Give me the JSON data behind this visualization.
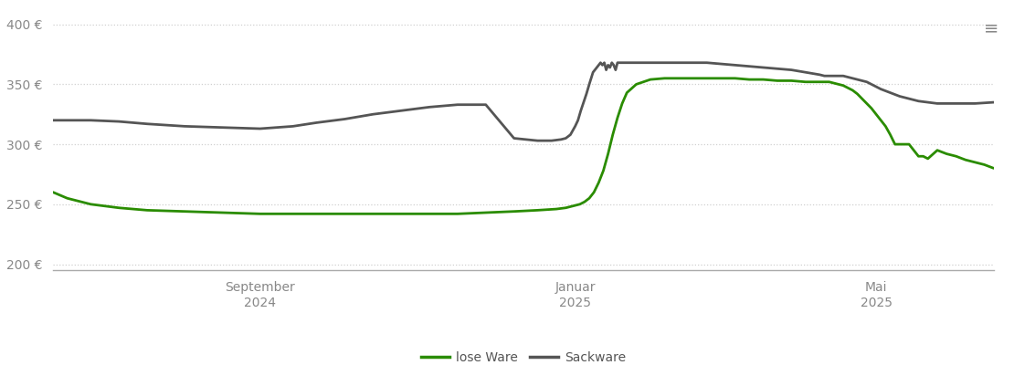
{
  "background_color": "#ffffff",
  "grid_color": "#d0d0d0",
  "line_green_color": "#2a8c00",
  "line_gray_color": "#555555",
  "ylim": [
    195,
    415
  ],
  "yticks": [
    200,
    250,
    300,
    350,
    400
  ],
  "ytick_labels": [
    "200 €",
    "250 €",
    "300 €",
    "350 €",
    "400 €"
  ],
  "x_tick_positions": [
    0.22,
    0.555,
    0.875
  ],
  "x_tick_labels": [
    "September\n2024",
    "Januar\n2025",
    "Mai\n2025"
  ],
  "legend_labels": [
    "lose Ware",
    "Sackware"
  ],
  "lose_ware_x": [
    0.0,
    0.015,
    0.04,
    0.07,
    0.1,
    0.14,
    0.18,
    0.22,
    0.255,
    0.28,
    0.31,
    0.34,
    0.37,
    0.4,
    0.43,
    0.46,
    0.49,
    0.515,
    0.535,
    0.545,
    0.55,
    0.555,
    0.56,
    0.565,
    0.57,
    0.575,
    0.58,
    0.585,
    0.59,
    0.595,
    0.6,
    0.605,
    0.61,
    0.62,
    0.635,
    0.65,
    0.665,
    0.68,
    0.695,
    0.71,
    0.725,
    0.74,
    0.755,
    0.77,
    0.785,
    0.8,
    0.815,
    0.82,
    0.825,
    0.83,
    0.835,
    0.84,
    0.845,
    0.85,
    0.855,
    0.86,
    0.865,
    0.87,
    0.875,
    0.88,
    0.885,
    0.89,
    0.895,
    0.9,
    0.905,
    0.91,
    0.915,
    0.92,
    0.925,
    0.93,
    0.94,
    0.95,
    0.96,
    0.97,
    0.98,
    0.99,
    1.0
  ],
  "lose_ware_y": [
    260,
    255,
    250,
    247,
    245,
    244,
    243,
    242,
    242,
    242,
    242,
    242,
    242,
    242,
    242,
    243,
    244,
    245,
    246,
    247,
    248,
    249,
    250,
    252,
    255,
    260,
    268,
    278,
    292,
    308,
    322,
    334,
    343,
    350,
    354,
    355,
    355,
    355,
    355,
    355,
    355,
    354,
    354,
    353,
    353,
    352,
    352,
    352,
    352,
    351,
    350,
    349,
    347,
    345,
    342,
    338,
    334,
    330,
    325,
    320,
    315,
    308,
    300,
    300,
    300,
    300,
    295,
    290,
    290,
    288,
    295,
    292,
    290,
    287,
    285,
    283,
    280
  ],
  "sackware_x": [
    0.0,
    0.015,
    0.04,
    0.07,
    0.1,
    0.14,
    0.18,
    0.22,
    0.255,
    0.28,
    0.31,
    0.34,
    0.37,
    0.4,
    0.43,
    0.46,
    0.49,
    0.515,
    0.53,
    0.54,
    0.545,
    0.55,
    0.555,
    0.558,
    0.561,
    0.564,
    0.567,
    0.57,
    0.572,
    0.574,
    0.576,
    0.578,
    0.58,
    0.582,
    0.584,
    0.586,
    0.588,
    0.59,
    0.592,
    0.594,
    0.596,
    0.598,
    0.6,
    0.605,
    0.61,
    0.62,
    0.635,
    0.65,
    0.665,
    0.68,
    0.695,
    0.71,
    0.725,
    0.74,
    0.755,
    0.77,
    0.785,
    0.8,
    0.815,
    0.82,
    0.825,
    0.83,
    0.835,
    0.84,
    0.845,
    0.85,
    0.855,
    0.86,
    0.865,
    0.87,
    0.875,
    0.88,
    0.9,
    0.92,
    0.94,
    0.96,
    0.98,
    1.0
  ],
  "sackware_y": [
    320,
    320,
    320,
    319,
    317,
    315,
    314,
    313,
    315,
    318,
    321,
    325,
    328,
    331,
    333,
    333,
    305,
    303,
    303,
    304,
    305,
    308,
    315,
    320,
    328,
    335,
    342,
    350,
    355,
    360,
    362,
    364,
    366,
    368,
    366,
    368,
    362,
    366,
    364,
    368,
    366,
    362,
    368,
    368,
    368,
    368,
    368,
    368,
    368,
    368,
    368,
    367,
    366,
    365,
    364,
    363,
    362,
    360,
    358,
    357,
    357,
    357,
    357,
    357,
    356,
    355,
    354,
    353,
    352,
    350,
    348,
    346,
    340,
    336,
    334,
    334,
    334,
    335
  ]
}
